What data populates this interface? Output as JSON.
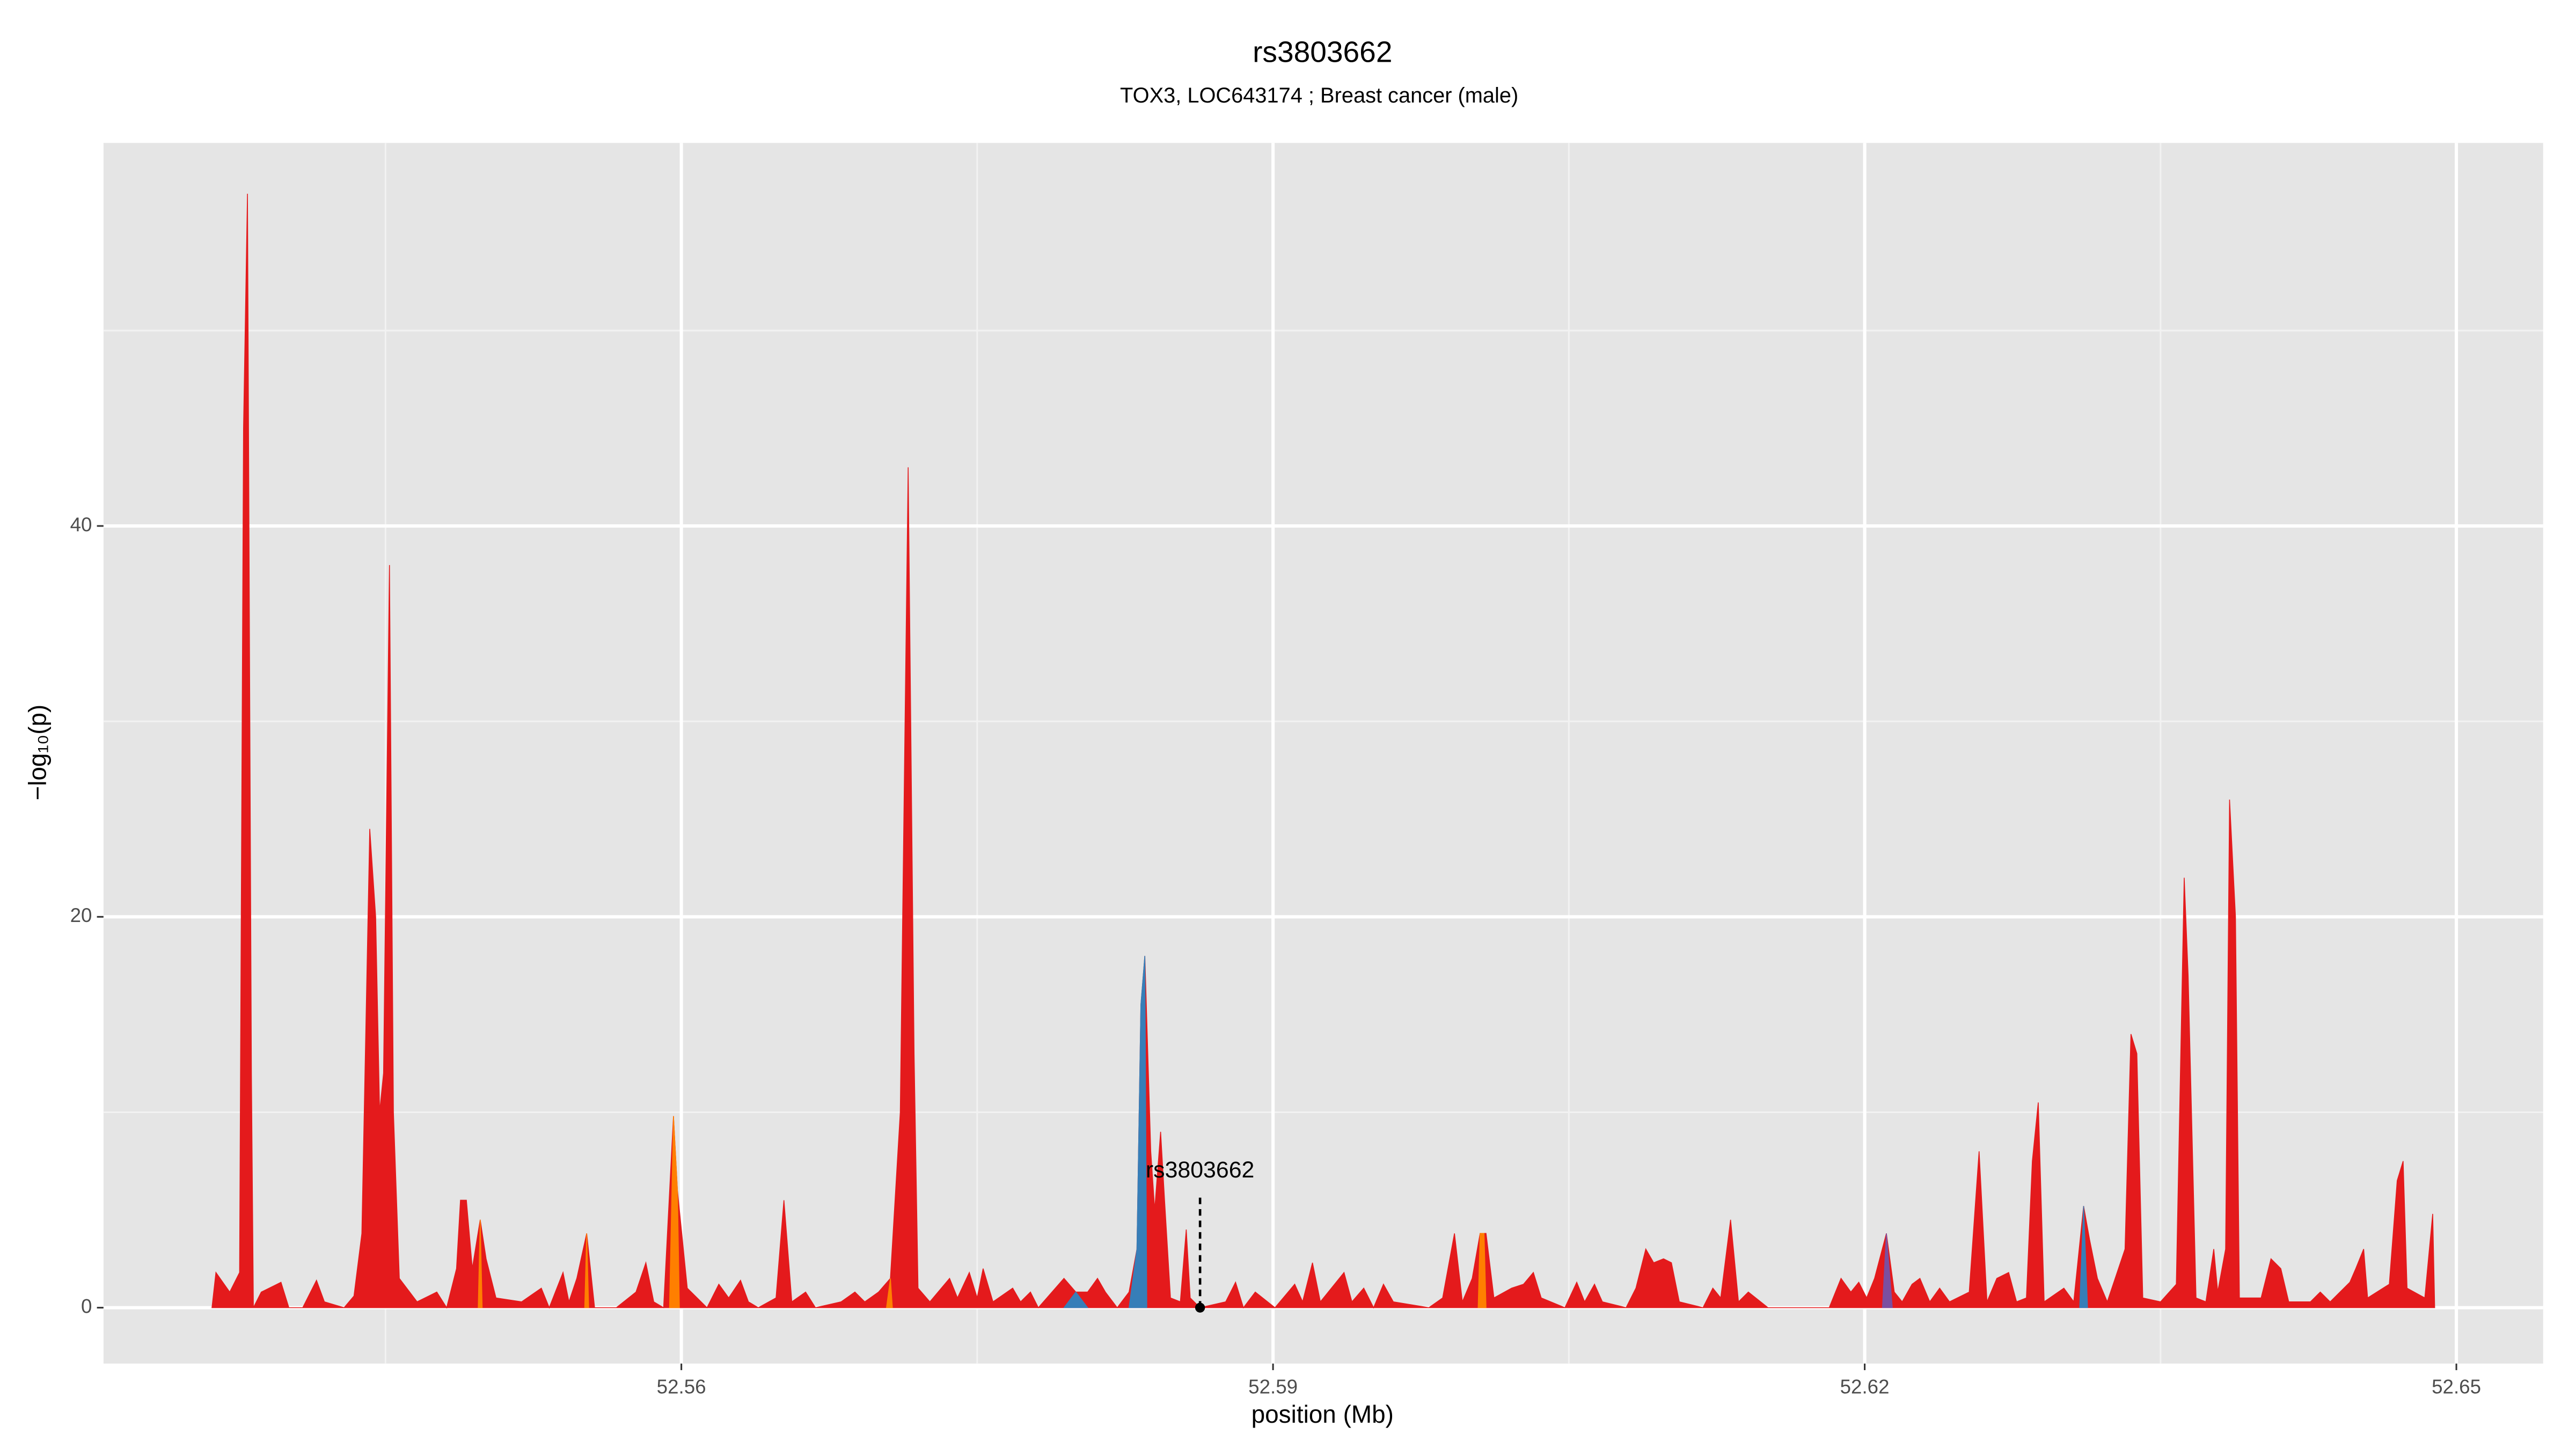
{
  "chart_data": {
    "type": "area",
    "title": "rs3803662",
    "subtitle": "TOX3, LOC643174 ; Breast cancer (male)",
    "x_label": "position (Mb)",
    "y_label": "−log₁₀(p)",
    "xlim": [
      52.5307,
      52.6544
    ],
    "ylim": [
      -2.86,
      59.6
    ],
    "xticks": [
      52.56,
      52.59,
      52.62,
      52.65
    ],
    "yticks": [
      0,
      20,
      40
    ],
    "grid": true,
    "annotation": {
      "text": "rs3803662",
      "x": 52.5863,
      "y": 0
    },
    "series": [
      {
        "color": "#e41a1c",
        "x": [
          52.5362,
          52.5364,
          52.5371,
          52.5376,
          52.5378,
          52.538,
          52.5382,
          52.5383,
          52.5387,
          52.5397,
          52.5401,
          52.5408,
          52.5415,
          52.5419,
          52.5429,
          52.5434,
          52.5438,
          52.5442,
          52.5445,
          52.5447,
          52.5449,
          52.5452,
          52.5454,
          52.5457,
          52.5466,
          52.5476,
          52.5481,
          52.5486,
          52.5488,
          52.5491,
          52.5494,
          52.5498,
          52.5501,
          52.5506,
          52.5519,
          52.5529,
          52.5533,
          52.554,
          52.5543,
          52.5547,
          52.5552,
          52.5556,
          52.5567,
          52.5577,
          52.5582,
          52.5586,
          52.5591,
          52.5596,
          52.5598,
          52.5603,
          52.5613,
          52.5619,
          52.5624,
          52.563,
          52.5634,
          52.5639,
          52.5648,
          52.5652,
          52.5656,
          52.5663,
          52.5668,
          52.5681,
          52.5688,
          52.5693,
          52.57,
          52.5706,
          52.5711,
          52.5715,
          52.5718,
          52.572,
          52.5726,
          52.5736,
          52.574,
          52.5746,
          52.575,
          52.5753,
          52.5758,
          52.5768,
          52.5772,
          52.5777,
          52.5781,
          52.5794,
          52.58,
          52.5806,
          52.5811,
          52.5815,
          52.5821,
          52.5827,
          52.5831,
          52.5833,
          52.5835,
          52.5838,
          52.584,
          52.5843,
          52.5845,
          52.5848,
          52.5853,
          52.5856,
          52.5858,
          52.5863,
          52.5876,
          52.5881,
          52.5885,
          52.5891,
          52.5901,
          52.5911,
          52.5915,
          52.592,
          52.5924,
          52.5936,
          52.594,
          52.5946,
          52.5951,
          52.5956,
          52.5961,
          52.5979,
          52.5986,
          52.5992,
          52.5996,
          52.6001,
          52.6005,
          52.6008,
          52.6012,
          52.6021,
          52.6027,
          52.6032,
          52.6036,
          52.6048,
          52.6054,
          52.6058,
          52.6063,
          52.6067,
          52.6079,
          52.6084,
          52.6089,
          52.6093,
          52.6098,
          52.6102,
          52.6106,
          52.6118,
          52.6123,
          52.6127,
          52.6132,
          52.6136,
          52.6141,
          52.6151,
          52.6182,
          52.6188,
          52.6193,
          52.6197,
          52.6201,
          52.6205,
          52.6211,
          52.6215,
          52.6219,
          52.6224,
          52.6228,
          52.6233,
          52.6238,
          52.6243,
          52.6253,
          52.6258,
          52.6262,
          52.6267,
          52.6273,
          52.6277,
          52.6282,
          52.6285,
          52.6288,
          52.6291,
          52.6301,
          52.6306,
          52.6311,
          52.6314,
          52.6318,
          52.6323,
          52.6332,
          52.6335,
          52.6338,
          52.6341,
          52.635,
          52.6358,
          52.6362,
          52.6364,
          52.6368,
          52.6373,
          52.6377,
          52.6379,
          52.6383,
          52.6385,
          52.6388,
          52.639,
          52.6401,
          52.6406,
          52.6411,
          52.6415,
          52.6426,
          52.6431,
          52.6436,
          52.6446,
          52.6449,
          52.6453,
          52.6455,
          52.6466,
          52.647,
          52.6473,
          52.6475,
          52.6484,
          52.6488,
          52.6489
        ],
        "values": [
          0,
          1.8,
          0.8,
          1.8,
          45,
          57,
          12,
          0,
          0.8,
          1.3,
          0,
          0,
          1.4,
          0.3,
          0,
          0.6,
          3.8,
          24.5,
          20,
          10,
          12,
          38,
          10,
          1.5,
          0.3,
          0.8,
          0,
          2,
          5.5,
          5.5,
          2,
          4.5,
          2.5,
          0.5,
          0.3,
          1,
          0,
          1.8,
          0.3,
          1.5,
          3.8,
          0,
          0,
          0.8,
          2.3,
          0.3,
          0,
          9.8,
          6,
          1,
          0,
          1.2,
          0.5,
          1.4,
          0.3,
          0,
          0.5,
          5.5,
          0.3,
          0.8,
          0,
          0.3,
          0.8,
          0.3,
          0.8,
          1.5,
          10,
          43,
          13,
          1,
          0.3,
          1.5,
          0.5,
          1.8,
          0.5,
          2,
          0.3,
          1,
          0.3,
          0.8,
          0,
          1.5,
          0.8,
          0.8,
          1.5,
          0.8,
          0,
          0.8,
          3,
          15.5,
          18,
          8,
          5,
          9,
          5.5,
          0.5,
          0.3,
          4,
          0.5,
          0,
          0.3,
          1.3,
          0,
          0.8,
          0,
          1.2,
          0.3,
          2.3,
          0.3,
          1.8,
          0.3,
          1,
          0,
          1.2,
          0.3,
          0,
          0.5,
          3.8,
          0.3,
          1.5,
          3.8,
          3.8,
          0.5,
          1,
          1.2,
          1.8,
          0.5,
          0,
          1.3,
          0.3,
          1.2,
          0.3,
          0,
          1,
          3,
          2.3,
          2.5,
          2.3,
          0.3,
          0,
          1,
          0.5,
          4.5,
          0.3,
          0.8,
          0,
          0,
          1.5,
          0.8,
          1.3,
          0.5,
          1.5,
          3.8,
          0.8,
          0.3,
          1.2,
          1.5,
          0.3,
          1,
          0.3,
          0.8,
          8,
          0.3,
          1.5,
          1.8,
          0.3,
          0.5,
          7.5,
          10.5,
          0.3,
          1,
          0.3,
          5.2,
          3.5,
          1.5,
          0.3,
          3,
          14,
          13,
          0.5,
          0.3,
          1.2,
          22,
          17,
          0.5,
          0.3,
          3,
          0.8,
          3,
          26,
          20,
          0.5,
          0.5,
          2.5,
          2,
          0.3,
          0.3,
          0.8,
          0.3,
          1.3,
          2,
          3,
          0.5,
          1.2,
          6.5,
          7.5,
          1,
          0.5,
          4.8,
          0
        ]
      },
      {
        "color": "#377eb8",
        "x": [
          52.5827,
          52.5831,
          52.5833,
          52.5835,
          52.5836
        ],
        "values": [
          0,
          3,
          15.5,
          18,
          0
        ]
      },
      {
        "color": "#377eb8",
        "x": [
          52.5794,
          52.58,
          52.5806
        ],
        "values": [
          0,
          0.8,
          0
        ]
      },
      {
        "color": "#377eb8",
        "x": [
          52.6309,
          52.6311,
          52.6313
        ],
        "values": [
          0,
          5.2,
          0
        ]
      },
      {
        "color": "#ff7f00",
        "x": [
          52.5594,
          52.5596,
          52.5598,
          52.5599
        ],
        "values": [
          0,
          9.8,
          6,
          0
        ]
      },
      {
        "color": "#ff7f00",
        "x": [
          52.5704,
          52.5706,
          52.5707
        ],
        "values": [
          0,
          1.5,
          0
        ]
      },
      {
        "color": "#ff7f00",
        "x": [
          52.5551,
          52.5552,
          52.5553
        ],
        "values": [
          0,
          3.8,
          0
        ]
      },
      {
        "color": "#ff7f00",
        "x": [
          52.5497,
          52.5498,
          52.5499
        ],
        "values": [
          0,
          4.5,
          0
        ]
      },
      {
        "color": "#ff7f00",
        "x": [
          52.6004,
          52.6005,
          52.6007,
          52.6008
        ],
        "values": [
          0,
          3.8,
          3.8,
          0
        ]
      },
      {
        "color": "#7b4fa0",
        "x": [
          52.6209,
          52.6211,
          52.6214
        ],
        "values": [
          0,
          3.8,
          0
        ]
      }
    ]
  }
}
